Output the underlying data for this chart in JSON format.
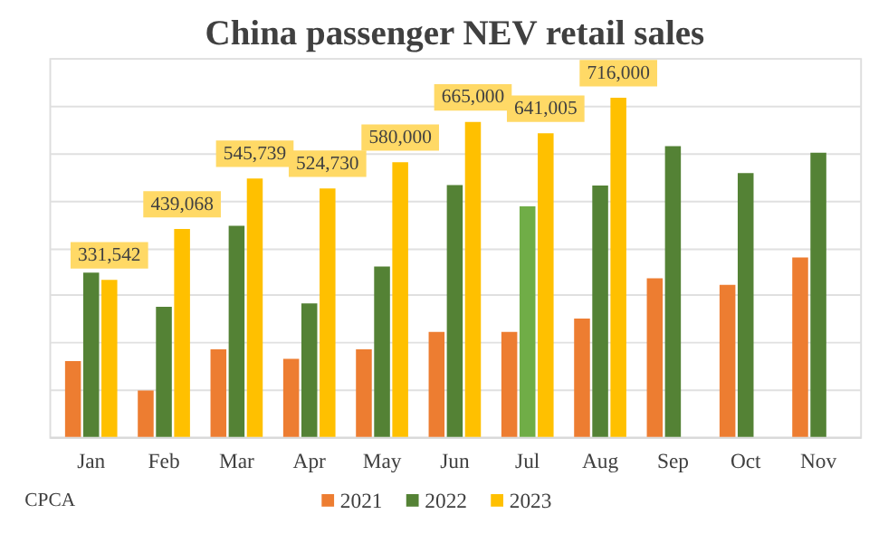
{
  "chart_data": {
    "type": "bar",
    "title": "China passenger NEV retail sales",
    "grid": "y",
    "legend": "bottom",
    "tick_labels": "x",
    "ylim": [
      0,
      800000
    ],
    "categories": [
      "Jan",
      "Feb",
      "Mar",
      "Apr",
      "May",
      "Jun",
      "Jul",
      "Aug",
      "Sep",
      "Oct",
      "Nov"
    ],
    "series": [
      {
        "name": "2021",
        "color": "#ed7d31",
        "values": [
          160000,
          98000,
          185000,
          165000,
          185000,
          222000,
          222000,
          250000,
          335000,
          321000,
          379000
        ]
      },
      {
        "name": "2022",
        "color": "#548235",
        "colors": [
          "#548235",
          "#548235",
          "#548235",
          "#548235",
          "#548235",
          "#548235",
          "#70ad47",
          "#548235",
          "#548235",
          "#548235",
          "#548235"
        ],
        "values": [
          347000,
          275000,
          446000,
          282000,
          360000,
          532000,
          487000,
          531000,
          614000,
          557000,
          600000
        ]
      },
      {
        "name": "2023",
        "color": "#ffc000",
        "values": [
          331542,
          439068,
          545739,
          524730,
          580000,
          665000,
          641005,
          716000,
          null,
          null,
          null
        ],
        "value_labels": [
          "331,542",
          "439,068",
          "545,739",
          "524,730",
          "580,000",
          "665,000",
          "641,005",
          "716,000",
          null,
          null,
          null
        ]
      }
    ],
    "annotations": [
      "CPCA"
    ]
  }
}
